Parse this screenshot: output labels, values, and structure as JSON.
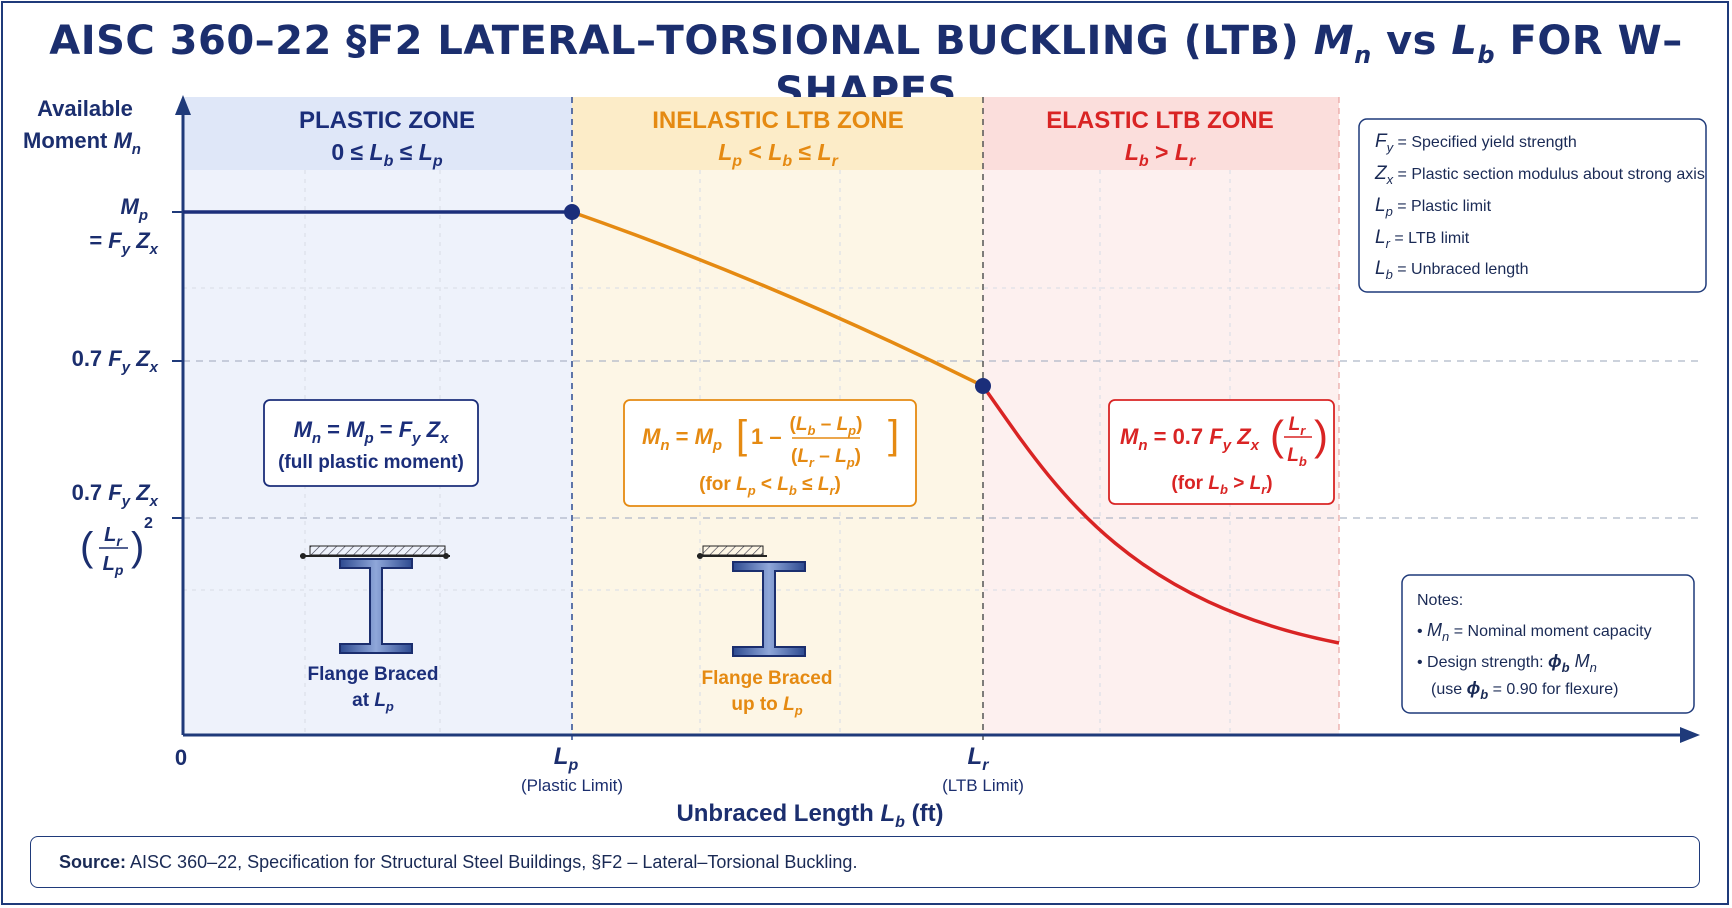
{
  "title": {
    "main": "AISC 360–22 §F2  LATERAL–TORSIONAL BUCKLING (LTB)",
    "symbol": "M",
    "symbol_sub": "n",
    "vs": "vs",
    "symbol2": "L",
    "symbol2_sub": "b",
    "tail": "FOR W–SHAPES"
  },
  "axes": {
    "y_title_line1": "Available",
    "y_title_line2": "Moment",
    "y_title_symbol": "M",
    "y_title_sub": "n",
    "x_title": "Unbraced Length",
    "x_title_symbol": "L",
    "x_title_sub": "b",
    "x_title_unit": "(ft)",
    "origin": "0",
    "x_ticks": [
      {
        "symbol": "L",
        "sub": "p",
        "caption": "(Plastic Limit)"
      },
      {
        "symbol": "L",
        "sub": "r",
        "caption": "(LTB Limit)"
      }
    ],
    "y_ticks": {
      "mp_symbol": "M",
      "mp_sub": "p",
      "mp_eq": "= F",
      "mp_eq_sub": "y",
      "mp_eq_tail": "Z",
      "mp_eq_tail_sub": "x",
      "seven_label": "0.7",
      "lower_label": "0.7"
    }
  },
  "zones": [
    {
      "name": "PLASTIC ZONE",
      "range": "0 ≤ L_b ≤ L_p",
      "color": "#1b2e7a",
      "bg": "#e9eefa"
    },
    {
      "name": "INELASTIC LTB ZONE",
      "range": "L_p < L_b ≤ L_r",
      "color": "#e58a12",
      "bg": "#fdf4e1"
    },
    {
      "name": "ELASTIC LTB ZONE",
      "range": "L_b > L_r",
      "color": "#d92424",
      "bg": "#fdeceb"
    }
  ],
  "equations": {
    "plastic_note": "(full plastic moment)",
    "inelastic_note": "(for",
    "elastic_note": "(for"
  },
  "beams": [
    {
      "caption_line1": "Flange Braced",
      "caption_line2": "at"
    },
    {
      "caption_line1": "Flange Braced",
      "caption_line2": "up to"
    }
  ],
  "legend": [
    {
      "symbol": "F",
      "sub": "y",
      "text": "Specified yield strength"
    },
    {
      "symbol": "Z",
      "sub": "x",
      "text": "Plastic section modulus about strong axis"
    },
    {
      "symbol": "L",
      "sub": "p",
      "text": "Plastic limit"
    },
    {
      "symbol": "L",
      "sub": "r",
      "text": "LTB limit"
    },
    {
      "symbol": "L",
      "sub": "b",
      "text": "Unbraced length"
    }
  ],
  "notes": {
    "heading": "Notes:",
    "item1_text": "Nominal moment capacity",
    "item2_text": "Design strength:",
    "item3_text": "(use",
    "item3_tail": "= 0.90 for flexure)"
  },
  "source": {
    "label": "Source:",
    "text": "AISC 360–22, Specification for Structural Steel Buildings, §F2 – Lateral–Torsional Buckling."
  },
  "colors": {
    "navy": "#1b2e7a",
    "orange": "#e58a12",
    "red": "#d92424",
    "axis": "#1f3a7a"
  }
}
